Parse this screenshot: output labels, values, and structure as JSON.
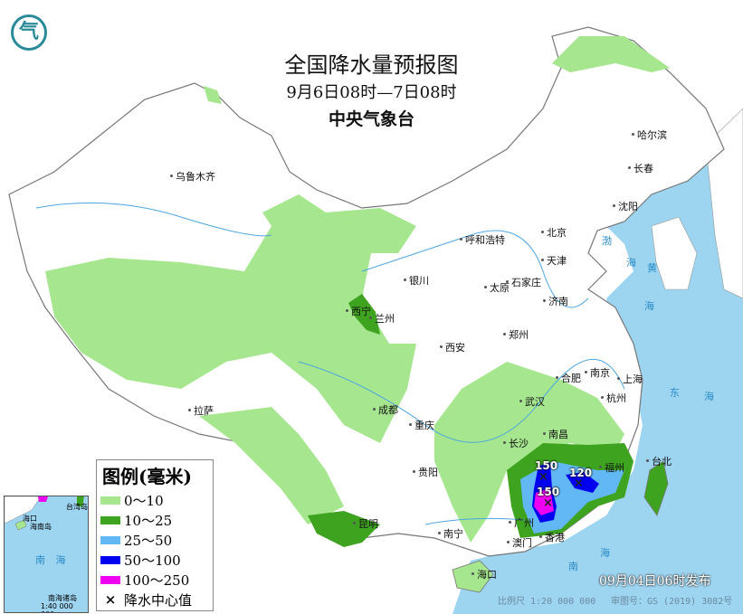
{
  "header": {
    "title": "全国降水量预报图",
    "period": "9月6日08时—7日08时",
    "agency": "中央气象台",
    "logo_text": "气"
  },
  "cities": [
    "乌鲁木齐",
    "哈尔滨",
    "长春",
    "沈阳",
    "呼和浩特",
    "北京",
    "天津",
    "石家庄",
    "太原",
    "济南",
    "银川",
    "西宁",
    "兰州",
    "郑州",
    "西安",
    "合肥",
    "南京",
    "上海",
    "杭州",
    "武汉",
    "成都",
    "重庆",
    "拉萨",
    "长沙",
    "南昌",
    "福州",
    "台北",
    "贵阳",
    "昆明",
    "南宁",
    "广州",
    "澳门",
    "香港",
    "海口"
  ],
  "seas": [
    "渤",
    "海",
    "黄",
    "海",
    "东",
    "海",
    "南",
    "海"
  ],
  "rain_centers": [
    {
      "value": "150",
      "location": "广东北部"
    },
    {
      "value": "150",
      "location": "广东中部"
    },
    {
      "value": "120",
      "location": "广东东部"
    }
  ],
  "legend": {
    "title": "图例(毫米)",
    "items": [
      {
        "label": "0～10",
        "color": "#a6e68e"
      },
      {
        "label": "10～25",
        "color": "#3ea31f"
      },
      {
        "label": "25～50",
        "color": "#61b8f4"
      },
      {
        "label": "50～100",
        "color": "#0000f0"
      },
      {
        "label": "100～250",
        "color": "#f000f0"
      }
    ],
    "center_label": "降水中心值",
    "center_symbol": "×"
  },
  "inset": {
    "label": "南海诸岛",
    "sea": "南 海",
    "scale": "1:40 000 000",
    "haikou": "海口",
    "hainan": "海南岛",
    "taiwan": "台湾岛"
  },
  "footer": {
    "published": "09月04日06时发布",
    "scale": "比例尺 1:20 000 000",
    "review_no": "审图号：GS (2019) 3082号"
  },
  "colors": {
    "sea": "#9dd4f0",
    "land": "#ffffff",
    "border": "#777777"
  }
}
